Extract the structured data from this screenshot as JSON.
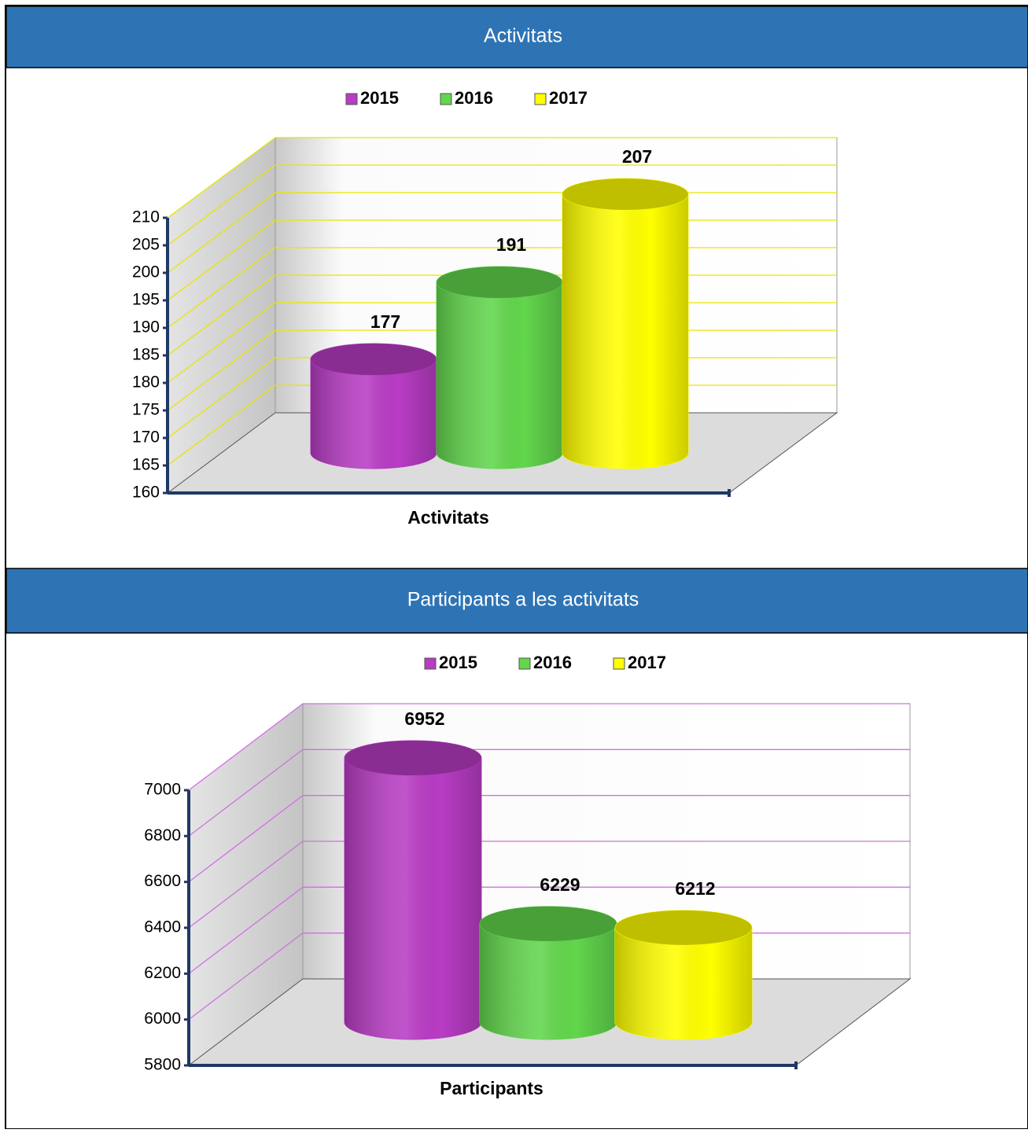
{
  "chart_data": [
    {
      "type": "bar",
      "title": "Activitats",
      "categories": [
        "Activitats"
      ],
      "series": [
        {
          "name": "2015",
          "color": "#b83cc4",
          "values": [
            177
          ]
        },
        {
          "name": "2016",
          "color": "#62d64c",
          "values": [
            191
          ]
        },
        {
          "name": "2017",
          "color": "#ffff00",
          "values": [
            207
          ]
        }
      ],
      "ylim": [
        160,
        210
      ],
      "yticks": [
        160,
        165,
        170,
        175,
        180,
        185,
        190,
        195,
        200,
        205,
        210
      ],
      "grid": true,
      "grid_color": "#e6e600",
      "legend": "top"
    },
    {
      "type": "bar",
      "title": "Participants a les activitats",
      "categories": [
        "Participants"
      ],
      "series": [
        {
          "name": "2015",
          "color": "#b83cc4",
          "values": [
            6952
          ]
        },
        {
          "name": "2016",
          "color": "#62d64c",
          "values": [
            6229
          ]
        },
        {
          "name": "2017",
          "color": "#ffff00",
          "values": [
            6212
          ]
        }
      ],
      "ylim": [
        5800,
        7000
      ],
      "yticks": [
        5800,
        6000,
        6200,
        6400,
        6600,
        6800,
        7000
      ],
      "grid": true,
      "grid_color": "#d070e0",
      "legend": "top"
    }
  ]
}
